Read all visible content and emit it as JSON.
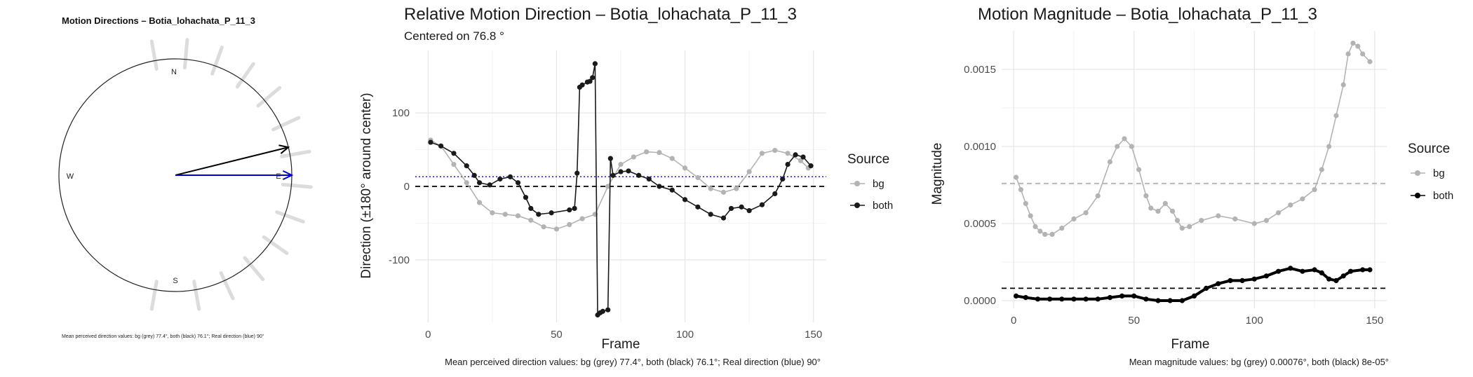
{
  "chart_data": [
    {
      "type": "polar",
      "title": "Motion Directions – Botia_lohachata_P_11_3",
      "compass_labels": {
        "north": "N",
        "south": "S",
        "east": "E",
        "west": "W"
      },
      "arrows": [
        {
          "label": "both",
          "angle_deg": 76.1,
          "color": "#000000"
        },
        {
          "label": "real",
          "angle_deg": 90,
          "color": "#0000cc"
        }
      ],
      "spoke_angles_deg": [
        350,
        5,
        20,
        35,
        50,
        65,
        80,
        95,
        110,
        125,
        140,
        155,
        170,
        190
      ],
      "caption": "Mean perceived direction values: bg (grey) 77.4°, both (black) 76.1°; Real direction (blue) 90°"
    },
    {
      "type": "line",
      "title": "Relative Motion Direction – Botia_lohachata_P_11_3",
      "subtitle": "Centered on  76.8 °",
      "xlabel": "Frame",
      "ylabel": "Direction (±180° around center)",
      "xlim": [
        -5,
        155
      ],
      "ylim": [
        -185,
        185
      ],
      "xticks": [
        0,
        50,
        100,
        150
      ],
      "yticks": [
        -100,
        0,
        100
      ],
      "legend": {
        "title": "Source",
        "position": "right",
        "items": [
          "bg",
          "both"
        ]
      },
      "reference_lines": [
        {
          "style": "dotted",
          "color": "#2b2bd6",
          "y": 13.2
        },
        {
          "style": "dashed",
          "color": "#000000",
          "y": 0
        }
      ],
      "series": [
        {
          "name": "bg",
          "color": "#b3b3b3",
          "points": [
            [
              1,
              63
            ],
            [
              5,
              55
            ],
            [
              10,
              30
            ],
            [
              15,
              5
            ],
            [
              20,
              -22
            ],
            [
              25,
              -36
            ],
            [
              30,
              -38
            ],
            [
              35,
              -40
            ],
            [
              40,
              -46
            ],
            [
              45,
              -55
            ],
            [
              50,
              -58
            ],
            [
              55,
              -52
            ],
            [
              60,
              -44
            ],
            [
              65,
              -38
            ],
            [
              70,
              0
            ],
            [
              75,
              30
            ],
            [
              80,
              40
            ],
            [
              85,
              47
            ],
            [
              90,
              46
            ],
            [
              95,
              38
            ],
            [
              100,
              25
            ],
            [
              105,
              12
            ],
            [
              110,
              -3
            ],
            [
              115,
              -8
            ],
            [
              120,
              -3
            ],
            [
              125,
              20
            ],
            [
              130,
              45
            ],
            [
              135,
              49
            ],
            [
              140,
              45
            ],
            [
              145,
              35
            ],
            [
              148,
              25
            ]
          ]
        },
        {
          "name": "both",
          "color": "#1a1a1a",
          "points": [
            [
              1,
              60
            ],
            [
              5,
              55
            ],
            [
              10,
              45
            ],
            [
              15,
              28
            ],
            [
              18,
              15
            ],
            [
              20,
              5
            ],
            [
              24,
              2
            ],
            [
              28,
              10
            ],
            [
              32,
              13
            ],
            [
              35,
              5
            ],
            [
              38,
              -15
            ],
            [
              40,
              -30
            ],
            [
              43,
              -38
            ],
            [
              48,
              -36
            ],
            [
              55,
              -32
            ],
            [
              57,
              -30
            ],
            [
              58,
              18
            ],
            [
              59,
              135
            ],
            [
              60,
              138
            ],
            [
              62,
              142
            ],
            [
              63,
              143
            ],
            [
              64,
              148
            ],
            [
              65,
              167
            ],
            [
              66,
              -175
            ],
            [
              67,
              -172
            ],
            [
              68,
              -170
            ],
            [
              70,
              -168
            ],
            [
              71,
              38
            ],
            [
              72,
              15
            ],
            [
              75,
              20
            ],
            [
              78,
              21
            ],
            [
              82,
              15
            ],
            [
              86,
              10
            ],
            [
              90,
              0
            ],
            [
              95,
              -5
            ],
            [
              100,
              -18
            ],
            [
              105,
              -28
            ],
            [
              110,
              -38
            ],
            [
              115,
              -43
            ],
            [
              118,
              -30
            ],
            [
              122,
              -28
            ],
            [
              125,
              -33
            ],
            [
              130,
              -25
            ],
            [
              135,
              -10
            ],
            [
              138,
              10
            ],
            [
              140,
              30
            ],
            [
              143,
              43
            ],
            [
              146,
              40
            ],
            [
              149,
              28
            ]
          ]
        }
      ],
      "caption": "Mean perceived direction values: bg (grey) 77.4°, both (black) 76.1°; Real direction (blue) 90°"
    },
    {
      "type": "line",
      "title": "Motion Magnitude – Botia_lohachata_P_11_3",
      "xlabel": "Frame",
      "ylabel": "Magnitude",
      "xlim": [
        -5,
        155
      ],
      "ylim": [
        -5e-05,
        0.00175
      ],
      "xticks": [
        0,
        50,
        100,
        150
      ],
      "yticks": [
        0.0,
        0.0005,
        0.001,
        0.0015
      ],
      "ytick_labels": [
        "0.0000",
        "0.0005",
        "0.0010",
        "0.0015"
      ],
      "legend": {
        "title": "Source",
        "position": "right",
        "items": [
          "bg",
          "both"
        ]
      },
      "reference_lines": [
        {
          "style": "dashed",
          "color": "#b3b3b3",
          "y": 0.00076
        },
        {
          "style": "dashed",
          "color": "#000000",
          "y": 8e-05
        }
      ],
      "series": [
        {
          "name": "bg",
          "color": "#b3b3b3",
          "points": [
            [
              1,
              0.0008
            ],
            [
              3,
              0.00072
            ],
            [
              5,
              0.00063
            ],
            [
              7,
              0.00055
            ],
            [
              9,
              0.00048
            ],
            [
              11,
              0.00045
            ],
            [
              13,
              0.00043
            ],
            [
              16,
              0.00043
            ],
            [
              20,
              0.00047
            ],
            [
              25,
              0.00053
            ],
            [
              30,
              0.00057
            ],
            [
              35,
              0.00068
            ],
            [
              40,
              0.0009
            ],
            [
              43,
              0.001
            ],
            [
              46,
              0.00105
            ],
            [
              49,
              0.001
            ],
            [
              52,
              0.00085
            ],
            [
              55,
              0.00068
            ],
            [
              57,
              0.0006
            ],
            [
              60,
              0.00058
            ],
            [
              63,
              0.00063
            ],
            [
              66,
              0.00058
            ],
            [
              68,
              0.00052
            ],
            [
              70,
              0.00047
            ],
            [
              73,
              0.00048
            ],
            [
              78,
              0.00052
            ],
            [
              85,
              0.00055
            ],
            [
              92,
              0.00053
            ],
            [
              100,
              0.0005
            ],
            [
              105,
              0.00052
            ],
            [
              110,
              0.00057
            ],
            [
              115,
              0.00062
            ],
            [
              120,
              0.00066
            ],
            [
              125,
              0.00072
            ],
            [
              128,
              0.00085
            ],
            [
              131,
              0.001
            ],
            [
              134,
              0.0012
            ],
            [
              137,
              0.0014
            ],
            [
              139,
              0.0016
            ],
            [
              141,
              0.00167
            ],
            [
              143,
              0.00165
            ],
            [
              145,
              0.0016
            ],
            [
              148,
              0.00155
            ]
          ]
        },
        {
          "name": "both",
          "color": "#000000",
          "points": [
            [
              1,
              3e-05
            ],
            [
              5,
              2e-05
            ],
            [
              10,
              1e-05
            ],
            [
              15,
              1e-05
            ],
            [
              20,
              1e-05
            ],
            [
              25,
              1e-05
            ],
            [
              30,
              1e-05
            ],
            [
              35,
              1e-05
            ],
            [
              40,
              2e-05
            ],
            [
              45,
              3e-05
            ],
            [
              50,
              3e-05
            ],
            [
              55,
              1e-05
            ],
            [
              60,
              0.0
            ],
            [
              65,
              0.0
            ],
            [
              70,
              0.0
            ],
            [
              75,
              3e-05
            ],
            [
              80,
              8e-05
            ],
            [
              85,
              0.00011
            ],
            [
              90,
              0.00013
            ],
            [
              95,
              0.00013
            ],
            [
              100,
              0.00014
            ],
            [
              105,
              0.00016
            ],
            [
              110,
              0.00019
            ],
            [
              115,
              0.00021
            ],
            [
              120,
              0.00019
            ],
            [
              125,
              0.0002
            ],
            [
              128,
              0.00018
            ],
            [
              131,
              0.00014
            ],
            [
              134,
              0.00013
            ],
            [
              137,
              0.00016
            ],
            [
              140,
              0.00019
            ],
            [
              145,
              0.0002
            ],
            [
              148,
              0.0002
            ]
          ]
        }
      ],
      "caption": "Mean magnitude values: bg (grey) 0.00076°, both (black) 8e-05°"
    }
  ]
}
